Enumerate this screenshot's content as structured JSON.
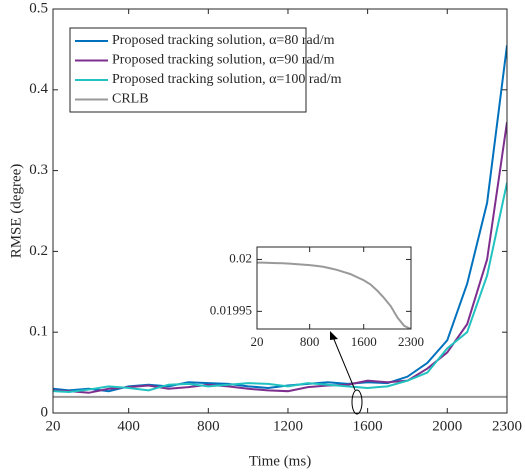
{
  "chart_data": {
    "type": "line",
    "xlabel": "Time (ms)",
    "ylabel": "RMSE (degree)",
    "xlim": [
      20,
      2300
    ],
    "xticks": [
      20,
      400,
      800,
      1200,
      1600,
      2000,
      2300
    ],
    "ylim": [
      0,
      0.5
    ],
    "yticks": [
      0,
      0.1,
      0.2,
      0.3,
      0.4,
      0.5
    ],
    "legend": "upper left",
    "x": [
      20,
      100,
      200,
      300,
      400,
      500,
      600,
      700,
      800,
      900,
      1000,
      1100,
      1200,
      1300,
      1400,
      1500,
      1600,
      1700,
      1800,
      1900,
      2000,
      2100,
      2200,
      2300
    ],
    "series": [
      {
        "name": "Proposed tracking solution, α=80 rad/m",
        "color": "#0072bd",
        "values": [
          0.03,
          0.028,
          0.03,
          0.027,
          0.033,
          0.035,
          0.033,
          0.038,
          0.037,
          0.036,
          0.033,
          0.031,
          0.034,
          0.036,
          0.038,
          0.036,
          0.038,
          0.037,
          0.045,
          0.062,
          0.09,
          0.16,
          0.26,
          0.455
        ]
      },
      {
        "name": "Proposed tracking solution, α=90 rad/m",
        "color": "#7e2f8e",
        "values": [
          0.028,
          0.027,
          0.025,
          0.03,
          0.032,
          0.034,
          0.03,
          0.032,
          0.035,
          0.033,
          0.03,
          0.028,
          0.027,
          0.032,
          0.034,
          0.035,
          0.04,
          0.038,
          0.04,
          0.055,
          0.075,
          0.11,
          0.19,
          0.36
        ]
      },
      {
        "name": "Proposed tracking solution, α=100 rad/m",
        "color": "#22c2c0",
        "values": [
          0.027,
          0.026,
          0.029,
          0.033,
          0.031,
          0.028,
          0.035,
          0.036,
          0.033,
          0.035,
          0.037,
          0.036,
          0.033,
          0.037,
          0.035,
          0.033,
          0.031,
          0.033,
          0.04,
          0.05,
          0.08,
          0.1,
          0.17,
          0.285
        ]
      },
      {
        "name": "CRLB",
        "color": "#999999",
        "values": [
          0.019997,
          0.0199969,
          0.0199967,
          0.0199965,
          0.0199963,
          0.019996,
          0.0199955,
          0.019995,
          0.0199945,
          0.0199938,
          0.019993,
          0.0199915,
          0.01999,
          0.019988,
          0.019986,
          0.019983,
          0.01998,
          0.019976,
          0.01997,
          0.019963,
          0.019955,
          0.019944,
          0.019936,
          0.019933
        ]
      }
    ],
    "inset": {
      "xlim": [
        20,
        2300
      ],
      "xticks": [
        20,
        800,
        1600,
        2300
      ],
      "ylim": [
        0.019933,
        0.020012
      ],
      "yticks": [
        0.02,
        0.01995
      ]
    }
  }
}
